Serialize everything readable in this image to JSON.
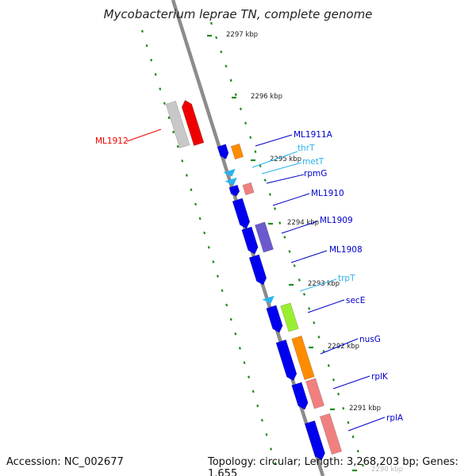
{
  "title": "Mycobacterium leprae TN, complete genome",
  "footer": {
    "accession": "Accession: NC_002677",
    "topology": "Topology: circular; Length: 3,268,203 bp; Genes: 1,655"
  },
  "colors": {
    "backbone": "#8c8c8c",
    "ruler": "#1e8c1e",
    "cds": "#0000ee",
    "trna": "#28b4ee",
    "gene_label": "#0000cc",
    "pseudo_label": "#ee0000"
  },
  "kbp_ticks": [
    {
      "label": "2297 kbp"
    },
    {
      "label": "2296 kbp"
    },
    {
      "label": "2295 kbp"
    },
    {
      "label": "2294 kbp"
    },
    {
      "label": "2293 kbp"
    },
    {
      "label": "2292 kbp"
    },
    {
      "label": "2291 kbp"
    },
    {
      "label": "2290 kbp"
    }
  ],
  "genes": [
    {
      "name": "ML1912",
      "type": "pseudogene",
      "fill": "#ee0000"
    },
    {
      "name": "ML1911A",
      "type": "CDS",
      "fill": "#ff8c00"
    },
    {
      "name": "thrT",
      "type": "tRNA",
      "fill": "#28b4ee"
    },
    {
      "name": "metT",
      "type": "tRNA",
      "fill": "#28b4ee"
    },
    {
      "name": "rpmG",
      "type": "CDS",
      "fill": "#f08080"
    },
    {
      "name": "ML1910",
      "type": "CDS",
      "fill": "#0000ee"
    },
    {
      "name": "ML1909",
      "type": "CDS",
      "fill": "#6a5acd"
    },
    {
      "name": "ML1908",
      "type": "CDS",
      "fill": "#0000ee"
    },
    {
      "name": "trpT",
      "type": "tRNA",
      "fill": "#28b4ee"
    },
    {
      "name": "secE",
      "type": "CDS",
      "fill": "#9aee32"
    },
    {
      "name": "nusG",
      "type": "CDS",
      "fill": "#ff8c00"
    },
    {
      "name": "rplK",
      "type": "CDS",
      "fill": "#f08080"
    },
    {
      "name": "rplA",
      "type": "CDS",
      "fill": "#f08080"
    }
  ]
}
